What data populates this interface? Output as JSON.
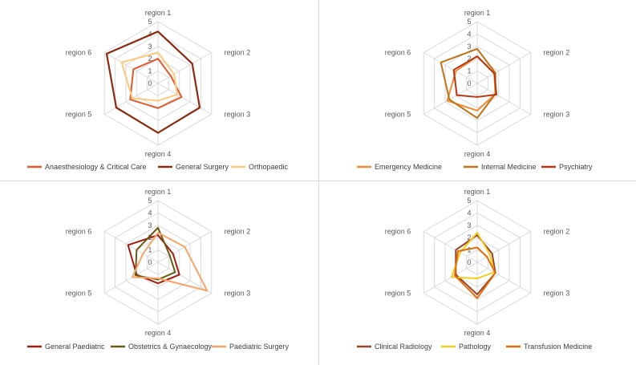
{
  "chart_data": [
    {
      "type": "radar",
      "title": "",
      "axes": [
        "region 1",
        "region 2",
        "region 3",
        "region 4",
        "region 5",
        "region 6"
      ],
      "rlim": [
        0,
        5
      ],
      "ticks": [
        "0",
        "1",
        "2",
        "3",
        "4",
        "5"
      ],
      "grid": true,
      "legend": "bottom",
      "series": [
        {
          "name": "Anaesthesiology & Critical Care",
          "color": "#e2592f",
          "values": [
            2.0,
            1.2,
            2.2,
            2.0,
            2.6,
            2.3
          ]
        },
        {
          "name": "General Surgery",
          "color": "#8e2a10",
          "values": [
            4.2,
            3.2,
            3.9,
            4.0,
            3.9,
            4.8
          ]
        },
        {
          "name": "Orthopaedic",
          "color": "#fbc97a",
          "values": [
            2.5,
            1.5,
            1.8,
            1.4,
            2.4,
            3.4
          ]
        }
      ]
    },
    {
      "type": "radar",
      "title": "",
      "axes": [
        "region 1",
        "region 2",
        "region 3",
        "region 4",
        "region 5",
        "region 6"
      ],
      "rlim": [
        0,
        5
      ],
      "ticks": [
        "0",
        "1",
        "2",
        "3",
        "4",
        "5"
      ],
      "grid": true,
      "legend": "bottom",
      "series": [
        {
          "name": "Emergency Medicine",
          "color": "#ef8c3a",
          "values": [
            2.2,
            1.6,
            1.7,
            2.2,
            2.8,
            2.0
          ]
        },
        {
          "name": "Internal Medicine",
          "color": "#bf7315",
          "values": [
            2.8,
            1.7,
            1.7,
            2.8,
            2.6,
            3.4
          ]
        },
        {
          "name": "Psychiatry",
          "color": "#b8360f",
          "values": [
            2.2,
            1.6,
            1.8,
            1.1,
            1.9,
            2.2
          ]
        }
      ]
    },
    {
      "type": "radar",
      "title": "",
      "axes": [
        "region 1",
        "region 2",
        "region 3",
        "region 4",
        "region 5",
        "region 6"
      ],
      "rlim": [
        0,
        5
      ],
      "ticks": [
        "0",
        "1",
        "2",
        "3",
        "4",
        "5"
      ],
      "grid": true,
      "legend": "bottom",
      "series": [
        {
          "name": "General Paediatric",
          "color": "#a11d0f",
          "values": [
            2.2,
            1.4,
            2.0,
            1.7,
            2.0,
            2.8
          ]
        },
        {
          "name": "Obstetrics & Gynaecology",
          "color": "#6b5a14",
          "values": [
            2.8,
            1.1,
            1.6,
            1.4,
            2.1,
            2.0
          ]
        },
        {
          "name": "Paediatric Surgery",
          "color": "#f7a566",
          "values": [
            2.4,
            2.5,
            4.6,
            1.3,
            2.4,
            1.4
          ]
        }
      ]
    },
    {
      "type": "radar",
      "title": "",
      "axes": [
        "region 1",
        "region 2",
        "region 3",
        "region 4",
        "region 5",
        "region 6"
      ],
      "rlim": [
        0,
        5
      ],
      "ticks": [
        "0",
        "1",
        "2",
        "3",
        "4",
        "5"
      ],
      "grid": true,
      "legend": "bottom",
      "series": [
        {
          "name": "Clinical Radiology",
          "color": "#9a4426",
          "values": [
            2.2,
            1.4,
            1.7,
            2.6,
            2.0,
            2.0
          ]
        },
        {
          "name": "Pathology",
          "color": "#f2cd1d",
          "values": [
            2.4,
            1.2,
            1.6,
            1.3,
            2.4,
            1.6
          ]
        },
        {
          "name": "Transfusion Medicine",
          "color": "#e46c0a",
          "values": [
            1.2,
            0.9,
            1.7,
            2.9,
            2.1,
            1.8
          ]
        }
      ]
    }
  ]
}
